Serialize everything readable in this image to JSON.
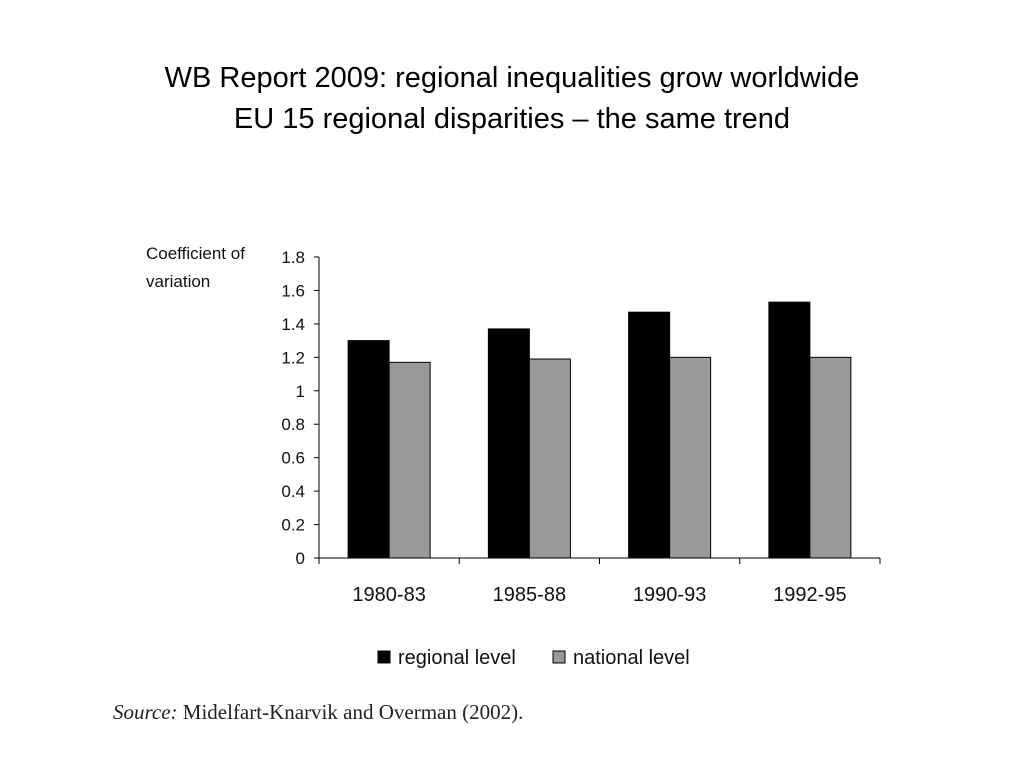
{
  "slide": {
    "title_line1": "WB Report 2009: regional inequalities grow worldwide",
    "title_line2": "EU 15 regional disparities – the same trend"
  },
  "chart_data": {
    "type": "bar",
    "title": "",
    "ylabel": [
      "Coefficient of",
      "variation"
    ],
    "xlabel": "",
    "categories": [
      "1980-83",
      "1985-88",
      "1990-93",
      "1992-95"
    ],
    "series": [
      {
        "name": "regional level",
        "values": [
          1.3,
          1.37,
          1.47,
          1.53
        ],
        "color": "#000000"
      },
      {
        "name": "national level",
        "values": [
          1.17,
          1.19,
          1.2,
          1.2
        ],
        "color": "#999999"
      }
    ],
    "ylim": [
      0,
      1.8
    ],
    "yticks": [
      "0",
      "0.2",
      "0.4",
      "0.6",
      "0.8",
      "1",
      "1.2",
      "1.4",
      "1.6",
      "1.8"
    ],
    "grid": false,
    "legend_position": "bottom"
  },
  "source": {
    "label": "Source:",
    "text": " Midelfart-Knarvik and Overman (2002)."
  }
}
